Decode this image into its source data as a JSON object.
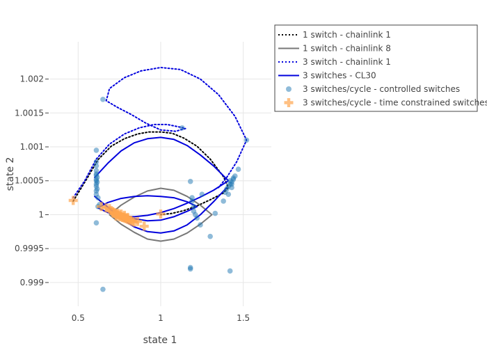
{
  "chart_data": {
    "type": "scatter",
    "xlabel": "state 1",
    "ylabel": "state 2",
    "xlim": [
      0.33,
      1.67
    ],
    "ylim": [
      0.99865,
      1.00255
    ],
    "xticks": [
      {
        "value": 0.5,
        "label": "0.5"
      },
      {
        "value": 1.0,
        "label": "1"
      },
      {
        "value": 1.5,
        "label": "1.5"
      }
    ],
    "yticks": [
      {
        "value": 0.999,
        "label": "0.999"
      },
      {
        "value": 0.9995,
        "label": "0.9995"
      },
      {
        "value": 1.0,
        "label": "1"
      },
      {
        "value": 1.0005,
        "label": "1.0005"
      },
      {
        "value": 1.001,
        "label": "1.001"
      },
      {
        "value": 1.0015,
        "label": "1.0015"
      },
      {
        "value": 1.002,
        "label": "1.002"
      }
    ],
    "grid": true,
    "legend_position": "top-right",
    "series": [
      {
        "name": "1 switch - chainlink 1",
        "mode": "line",
        "dash": "dot",
        "color": "#000000",
        "x": [
          0.47,
          0.55,
          0.62,
          0.7,
          0.78,
          0.86,
          0.93,
          1.0,
          1.07,
          1.14,
          1.22,
          1.3,
          1.38,
          1.41,
          1.38,
          1.3,
          1.22,
          1.14,
          1.07,
          1.0
        ],
        "y": [
          1.0002,
          1.00052,
          1.00081,
          1.00101,
          1.00112,
          1.00119,
          1.00122,
          1.00122,
          1.0012,
          1.00113,
          1.00101,
          1.00082,
          1.00056,
          1.0004,
          1.00032,
          1.00022,
          1.00013,
          1.00006,
          1.00002,
          1.0
        ]
      },
      {
        "name": "1 switch - chainlink 8",
        "mode": "line",
        "dash": "solid",
        "color": "#777777",
        "x": [
          0.69,
          0.76,
          0.84,
          0.92,
          1.0,
          1.08,
          1.16,
          1.24,
          1.31,
          1.24,
          1.16,
          1.08,
          1.0,
          0.92,
          0.84,
          0.76,
          0.69
        ],
        "y": [
          1.0,
          1.00014,
          1.00026,
          1.00035,
          1.00039,
          1.00036,
          1.00027,
          1.00014,
          1.0,
          0.99986,
          0.99973,
          0.99964,
          0.99961,
          0.99964,
          0.99974,
          0.99986,
          1.0
        ]
      },
      {
        "name": "3 switch - chainlink 1",
        "mode": "line",
        "dash": "dot",
        "color": "#0000dd",
        "x": [
          0.47,
          0.54,
          0.61,
          0.69,
          0.78,
          0.87,
          0.96,
          1.04,
          1.12,
          1.15,
          1.09,
          1.0,
          0.91,
          0.82,
          0.74,
          0.67,
          0.69,
          0.78,
          0.88,
          1.0,
          1.12,
          1.24,
          1.35,
          1.45,
          1.52,
          1.46,
          1.4,
          1.35
        ],
        "y": [
          1.00025,
          1.0005,
          1.00082,
          1.00104,
          1.00119,
          1.00128,
          1.00133,
          1.00133,
          1.00129,
          1.00127,
          1.00123,
          1.00125,
          1.00135,
          1.00148,
          1.00158,
          1.00168,
          1.00186,
          1.00202,
          1.00212,
          1.00217,
          1.00214,
          1.002,
          1.00177,
          1.00145,
          1.0011,
          1.00078,
          1.00055,
          1.0004
        ]
      },
      {
        "name": "3 switches - CL30",
        "mode": "line",
        "dash": "solid",
        "color": "#0000dd",
        "x": [
          0.6,
          0.68,
          0.76,
          0.84,
          0.92,
          1.0,
          1.08,
          1.16,
          1.24,
          1.32,
          1.41,
          1.32,
          1.24,
          1.16,
          1.08,
          1.0,
          0.92,
          0.84,
          0.76,
          0.68,
          0.62,
          0.68,
          0.76,
          0.84,
          0.92,
          1.0,
          1.08,
          1.16,
          1.22,
          1.16,
          1.08,
          1.0,
          0.92,
          0.84,
          0.76,
          0.68,
          0.6,
          0.68,
          0.76,
          0.84,
          0.92,
          1.0,
          1.08,
          1.16,
          1.24,
          1.32,
          1.4
        ],
        "y": [
          1.00055,
          1.00076,
          1.00094,
          1.00106,
          1.00112,
          1.00114,
          1.00111,
          1.00102,
          1.00088,
          1.00072,
          1.0005,
          1.00036,
          1.00026,
          1.00017,
          1.00009,
          1.00003,
          0.99999,
          0.99997,
          0.99998,
          1.00003,
          1.0001,
          1.00018,
          1.00024,
          1.00027,
          1.00028,
          1.00027,
          1.00025,
          1.00019,
          1.00012,
          1.00005,
          0.99997,
          0.99992,
          0.99991,
          0.99994,
          1.00001,
          1.00011,
          1.00027,
          1.00011,
          0.99994,
          0.99982,
          0.99975,
          0.99973,
          0.99976,
          0.99985,
          1.0,
          1.00019,
          1.0004
        ]
      },
      {
        "name": "3 switches/cycle - controlled switches",
        "mode": "markers",
        "marker": "circle",
        "color": "#1f77b4",
        "x": [
          0.65,
          1.13,
          1.52,
          0.61,
          0.61,
          0.61,
          0.61,
          0.61,
          0.61,
          0.615,
          0.61,
          0.61,
          0.615,
          0.61,
          0.61,
          0.615,
          0.61,
          0.61,
          0.62,
          0.63,
          0.62,
          0.61,
          0.65,
          1.18,
          1.19,
          1.19,
          1.2,
          1.2,
          1.21,
          1.22,
          1.24,
          1.3,
          1.18,
          1.25,
          1.39,
          1.4,
          1.41,
          1.42,
          1.43,
          1.44,
          1.45,
          1.42,
          1.43,
          1.47,
          1.44,
          1.41,
          1.43,
          1.38,
          1.33,
          1.18,
          1.42
        ],
        "y": [
          1.0017,
          1.00128,
          1.0011,
          1.00095,
          1.00078,
          1.00072,
          1.00065,
          1.0006,
          1.00058,
          1.00055,
          1.00052,
          1.0005,
          1.00048,
          1.00045,
          1.00042,
          1.00038,
          1.00035,
          1.0003,
          1.00025,
          1.00015,
          1.00012,
          0.99988,
          0.9989,
          1.00049,
          1.00025,
          1.0002,
          1.00012,
          1.00005,
          1.0,
          0.99995,
          0.99985,
          0.99968,
          0.9992,
          1.0003,
          1.00033,
          1.00038,
          1.00042,
          1.00045,
          1.00048,
          1.00052,
          1.00057,
          1.0005,
          1.0004,
          1.00067,
          1.00054,
          1.0003,
          1.00045,
          1.0002,
          1.00002,
          0.99922,
          0.99917
        ]
      },
      {
        "name": "3 switches/cycle - time constrained switches",
        "mode": "markers",
        "marker": "cross",
        "color": "#ffa54f",
        "x": [
          0.47,
          0.64,
          0.67,
          0.69,
          0.7,
          0.71,
          0.72,
          0.73,
          0.74,
          0.75,
          0.76,
          0.77,
          0.78,
          0.79,
          0.8,
          0.81,
          0.82,
          0.83,
          0.84,
          0.72,
          0.74,
          0.76,
          0.78,
          0.8,
          0.73,
          0.75,
          0.77,
          0.79,
          0.9,
          1.0,
          0.86
        ],
        "y": [
          1.00021,
          1.00012,
          1.0001,
          1.00009,
          1.00006,
          1.00004,
          1.00002,
          1.00001,
          1.0,
          0.99999,
          0.99997,
          0.99996,
          0.99995,
          0.99994,
          0.99993,
          0.99992,
          0.99991,
          0.9999,
          0.99989,
          1.00003,
          1.00002,
          1.00001,
          0.99999,
          0.99996,
          0.99998,
          0.99997,
          0.99996,
          0.99995,
          0.99983,
          1.00001,
          0.9999
        ]
      }
    ]
  }
}
